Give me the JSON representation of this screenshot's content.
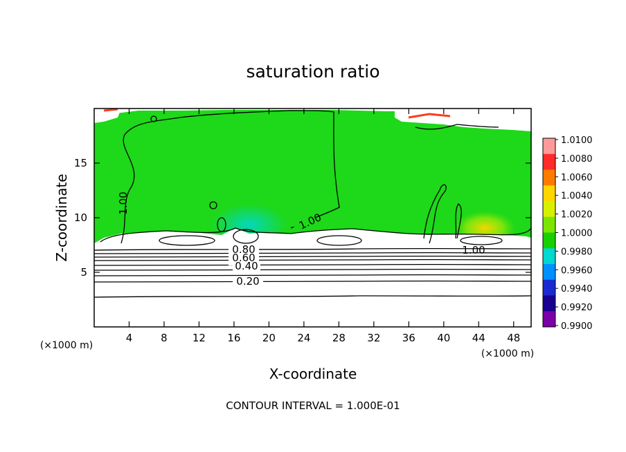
{
  "chart_data": {
    "type": "heatmap",
    "title": "saturation ratio",
    "xlabel": "X-coordinate",
    "ylabel": "Z-coordinate",
    "x_unit": "(×1000 m)",
    "xlim": [
      0,
      50
    ],
    "ylim": [
      0,
      20
    ],
    "x_ticks": [
      4,
      8,
      12,
      16,
      20,
      24,
      28,
      32,
      36,
      40,
      44,
      48
    ],
    "y_ticks": [
      5,
      10,
      15
    ],
    "footnote": "CONTOUR INTERVAL = 1.000E-01",
    "contour_labels": [
      "1.00",
      "1.00",
      "1.00",
      "0.80",
      "0.60",
      "0.40",
      "0.20"
    ],
    "colorbar": {
      "levels": [
        "1.0100",
        "1.0080",
        "1.0060",
        "1.0040",
        "1.0020",
        "1.0000",
        "0.9980",
        "0.9960",
        "0.9940",
        "0.9920",
        "0.9900"
      ],
      "colors": [
        "#ff9a9a",
        "#ff2a2a",
        "#ff7b00",
        "#ffd500",
        "#d8f000",
        "#7ae600",
        "#18d000",
        "#00d8d0",
        "#0090ff",
        "#1a2ad0",
        "#180090",
        "#7a00a8"
      ]
    },
    "colors": {
      "field": "#1ed81a",
      "saturated": "#ffffff",
      "contour": "#000000"
    }
  }
}
